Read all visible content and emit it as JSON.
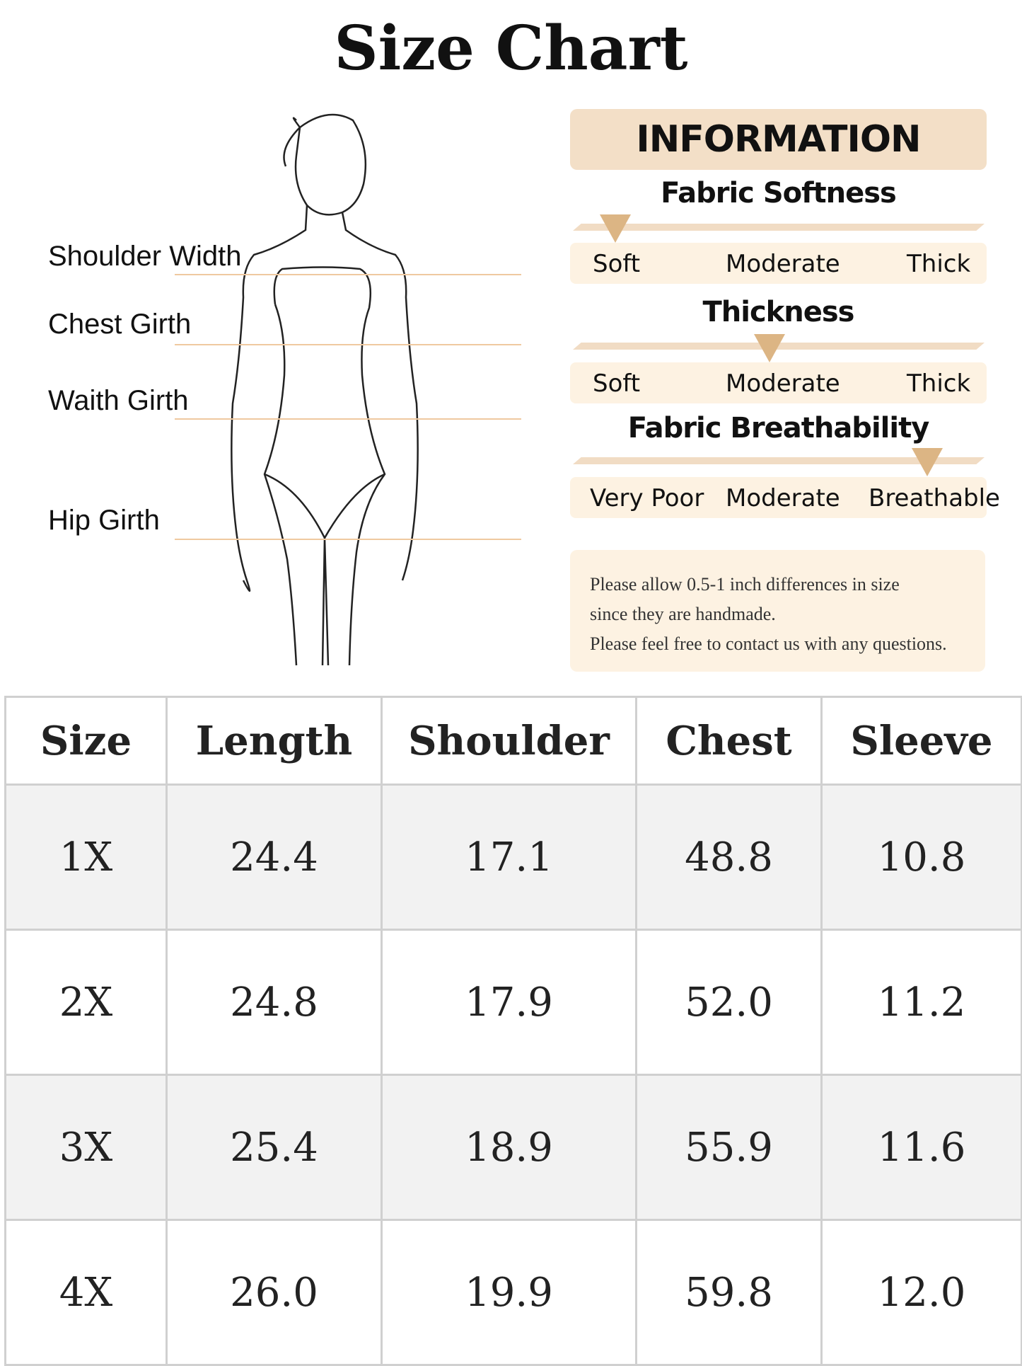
{
  "title": "Size Chart",
  "measurements": [
    "Shoulder Width",
    "Chest Girth",
    "Waith Girth",
    "Hip Girth"
  ],
  "info": {
    "header": "INFORMATION",
    "scales": [
      {
        "title": "Fabric Softness",
        "labels": [
          "Soft",
          "Moderate",
          "Thick"
        ],
        "selected_level": 0
      },
      {
        "title": "Thickness",
        "labels": [
          "Soft",
          "Moderate",
          "Thick"
        ],
        "selected_level": 0.5
      },
      {
        "title": "Fabric Breathability",
        "labels": [
          "Very Poor",
          "Moderate",
          "Breathable"
        ],
        "selected_level": 1
      }
    ],
    "note": [
      "Please allow 0.5-1 inch differences in size",
      "since they are handmade.",
      "Please feel free to contact us with any questions."
    ],
    "accent_color": "#dcb584"
  },
  "table": {
    "headers": [
      "Size",
      "Length",
      "Shoulder",
      "Chest",
      "Sleeve"
    ],
    "rows": [
      [
        "1X",
        "24.4",
        "17.1",
        "48.8",
        "10.8"
      ],
      [
        "2X",
        "24.8",
        "17.9",
        "52.0",
        "11.2"
      ],
      [
        "3X",
        "25.4",
        "18.9",
        "55.9",
        "11.6"
      ],
      [
        "4X",
        "26.0",
        "19.9",
        "59.8",
        "12.0"
      ]
    ]
  }
}
